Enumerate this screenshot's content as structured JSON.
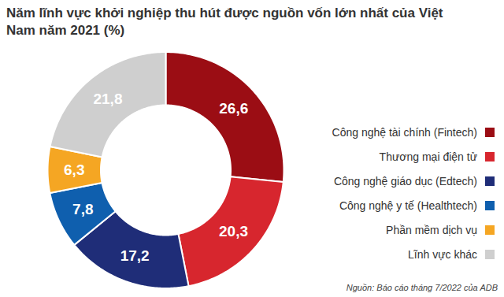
{
  "chart_data": {
    "type": "pie",
    "title": "Năm lĩnh vực khởi nghiệp thu hút được nguồn vốn lớn nhất của Việt Nam năm 2021 (%)",
    "categories": [
      "Công nghệ tài chính (Fintech)",
      "Thương mại điện tử",
      "Công nghệ giáo dục (Edtech)",
      "Công nghệ y tế (Healthtech)",
      "Phần mềm dịch vụ",
      "Lĩnh vực khác"
    ],
    "values": [
      26.6,
      20.3,
      17.2,
      7.8,
      6.3,
      21.8
    ],
    "value_labels": [
      "26,6",
      "20,3",
      "17,2",
      "7,8",
      "6,3",
      "21,8"
    ],
    "colors": [
      "#9b0d14",
      "#d7262e",
      "#1f2d78",
      "#0f5fae",
      "#f5a623",
      "#cfcfcf"
    ],
    "data_labels": true,
    "legend": "right",
    "source": "Nguồn: Báo cáo tháng 7/2022 của ADB"
  }
}
